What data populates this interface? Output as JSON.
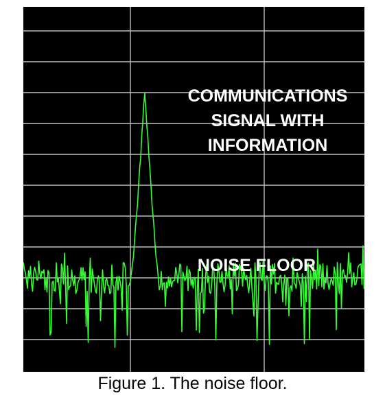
{
  "colors": {
    "background": "#000000",
    "grid": "#bfbfbf",
    "trace": "#33ff33",
    "label_text": "#ffffff",
    "caption_text": "#000000"
  },
  "annotations": {
    "signal_lines": [
      "COMMUNICATIONS",
      "SIGNAL WITH",
      "INFORMATION"
    ],
    "noise_floor": "NOISE FLOOR"
  },
  "caption": "Figure 1.  The noise floor.",
  "chart_data": {
    "type": "line",
    "grid": true,
    "noise_floor_level": 0.2,
    "peak_level": 0.77,
    "peak_position": 0.36
  }
}
